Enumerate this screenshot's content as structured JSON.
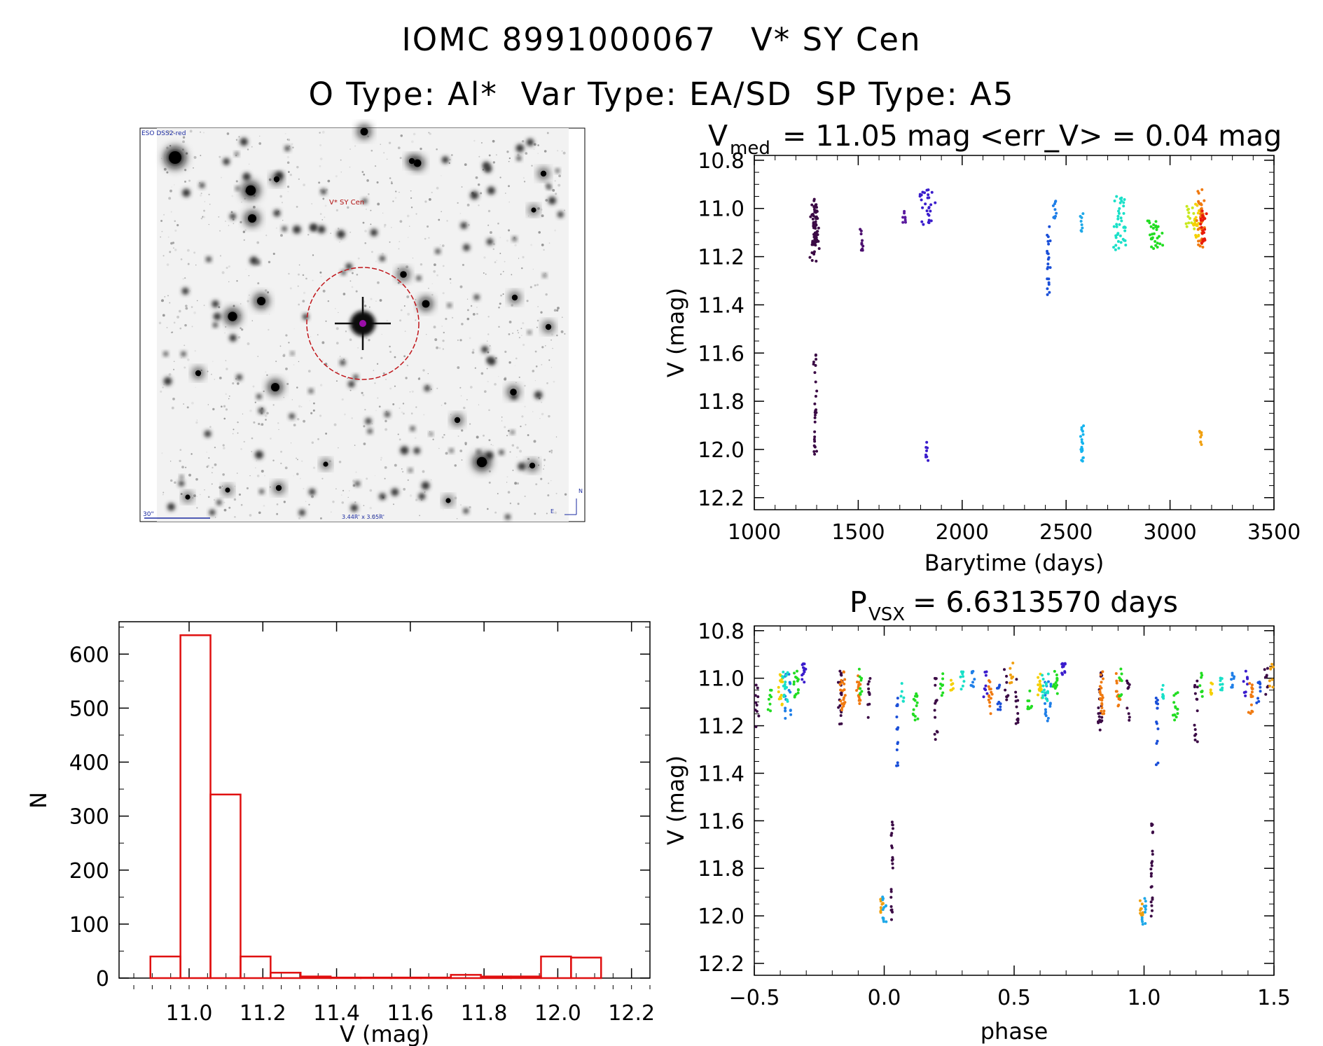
{
  "titles": {
    "line1": "IOMC 8991000067   V* SY Cen",
    "line2": "O Type: Al*  Var Type: EA/SD  SP Type: A5"
  },
  "finder": {
    "survey_label": "ESO DSS2-red",
    "target_label": "V* SY Cen",
    "scale_label": "30\"",
    "fov_label": "3.44R' x 3.05R'",
    "north_label": "N",
    "east_label": "E"
  },
  "chart_data": [
    {
      "type": "scatter",
      "id": "light-curve",
      "title": {
        "base": "V",
        "sub": "med",
        "rest": " = 11.05 mag <err_V> = 0.04 mag"
      },
      "xlabel": "Barytime (days)",
      "ylabel": "V (mag)",
      "xlim": [
        1000,
        3500
      ],
      "ylim": [
        12.25,
        10.78
      ],
      "yinverted": true,
      "xticks": [
        1000,
        1500,
        2000,
        2500,
        3000,
        3500
      ],
      "xticklabels": [
        "1000",
        "1500",
        "2000",
        "2500",
        "3000",
        "3500"
      ],
      "yticks": [
        10.8,
        11.0,
        11.2,
        11.4,
        11.6,
        11.8,
        12.0,
        12.2
      ],
      "yticklabels": [
        "10.8",
        "11.0",
        "11.2",
        "11.4",
        "11.6",
        "11.8",
        "12.0",
        "12.2"
      ],
      "clusters": [
        {
          "t": 1290,
          "ymin": 10.96,
          "ymax": 11.22,
          "n": 70,
          "color": "#3b0a45",
          "spread": 8
        },
        {
          "t": 1292,
          "ymin": 11.6,
          "ymax": 11.9,
          "n": 18,
          "color": "#3b0a45",
          "spread": 3
        },
        {
          "t": 1292,
          "ymin": 11.92,
          "ymax": 12.03,
          "n": 10,
          "color": "#3b0a45",
          "spread": 3
        },
        {
          "t": 1515,
          "ymin": 11.08,
          "ymax": 11.21,
          "n": 10,
          "color": "#4b0e6e",
          "spread": 3
        },
        {
          "t": 1720,
          "ymin": 11.01,
          "ymax": 11.07,
          "n": 8,
          "color": "#5a1a9e",
          "spread": 3
        },
        {
          "t": 1835,
          "ymin": 10.92,
          "ymax": 11.08,
          "n": 28,
          "color": "#3a1ccc",
          "spread": 14
        },
        {
          "t": 1830,
          "ymin": 11.94,
          "ymax": 12.05,
          "n": 8,
          "color": "#3a1ccc",
          "spread": 2
        },
        {
          "t": 2415,
          "ymin": 11.07,
          "ymax": 11.37,
          "n": 22,
          "color": "#1a4fd8",
          "spread": 3
        },
        {
          "t": 2445,
          "ymin": 10.96,
          "ymax": 11.05,
          "n": 10,
          "color": "#1f7fe8",
          "spread": 3
        },
        {
          "t": 2575,
          "ymin": 11.02,
          "ymax": 11.1,
          "n": 8,
          "color": "#1fa8e8",
          "spread": 3
        },
        {
          "t": 2575,
          "ymin": 11.9,
          "ymax": 12.05,
          "n": 20,
          "color": "#15b4ee",
          "spread": 3
        },
        {
          "t": 2760,
          "ymin": 10.95,
          "ymax": 11.19,
          "n": 40,
          "color": "#19e0c8",
          "spread": 10
        },
        {
          "t": 2930,
          "ymin": 11.05,
          "ymax": 11.18,
          "n": 30,
          "color": "#22dd22",
          "spread": 12
        },
        {
          "t": 3100,
          "ymin": 10.97,
          "ymax": 11.09,
          "n": 15,
          "color": "#c8e81e",
          "spread": 8
        },
        {
          "t": 3125,
          "ymin": 10.98,
          "ymax": 11.12,
          "n": 18,
          "color": "#f5d000",
          "spread": 6
        },
        {
          "t": 3150,
          "ymin": 10.92,
          "ymax": 11.17,
          "n": 40,
          "color": "#f07a10",
          "spread": 7
        },
        {
          "t": 3160,
          "ymin": 10.97,
          "ymax": 11.15,
          "n": 25,
          "color": "#e81a0a",
          "spread": 5
        },
        {
          "t": 3148,
          "ymin": 11.92,
          "ymax": 12.0,
          "n": 8,
          "color": "#f0a010",
          "spread": 2
        }
      ]
    },
    {
      "type": "bar",
      "id": "histogram",
      "xlabel": "V (mag)",
      "ylabel": "N",
      "xlim": [
        10.81,
        12.25
      ],
      "ylim": [
        0,
        660
      ],
      "xticks": [
        11.0,
        11.2,
        11.4,
        11.6,
        11.8,
        12.0,
        12.2
      ],
      "xticklabels": [
        "11.0",
        "11.2",
        "11.4",
        "11.6",
        "11.8",
        "12.0",
        "12.2"
      ],
      "yticks": [
        0,
        100,
        200,
        300,
        400,
        500,
        600
      ],
      "yticklabels": [
        "0",
        "100",
        "200",
        "300",
        "400",
        "500",
        "600"
      ],
      "bin_width": 0.0815,
      "bin_start": 10.895,
      "counts": [
        40,
        635,
        340,
        40,
        10,
        3,
        1,
        1,
        1,
        1,
        6,
        3,
        3,
        40,
        38
      ],
      "color": "#e01010"
    },
    {
      "type": "scatter",
      "id": "phased-curve",
      "title": {
        "base": "P",
        "sub": "VSX",
        "rest": " = 6.6313570 days"
      },
      "xlabel": "phase",
      "ylabel": "V (mag)",
      "xlim": [
        -0.5,
        1.5
      ],
      "ylim": [
        12.25,
        10.78
      ],
      "yinverted": true,
      "xticks": [
        -0.5,
        0.0,
        0.5,
        1.0,
        1.5
      ],
      "xticklabels": [
        "−0.5",
        "0.0",
        "0.5",
        "1.0",
        "1.5"
      ],
      "yticks": [
        10.8,
        11.0,
        11.2,
        11.4,
        11.6,
        11.8,
        12.0,
        12.2
      ],
      "yticklabels": [
        "10.8",
        "11.0",
        "11.2",
        "11.4",
        "11.6",
        "11.8",
        "12.0",
        "12.2"
      ],
      "period_days": 6.631357,
      "clusters": [
        {
          "p": -0.49,
          "ymin": 11.02,
          "ymax": 11.22,
          "n": 10,
          "color": "#3b0a45",
          "spread": 0.008
        },
        {
          "p": -0.44,
          "ymin": 11.05,
          "ymax": 11.14,
          "n": 8,
          "color": "#22dd22",
          "spread": 0.008
        },
        {
          "p": -0.4,
          "ymin": 10.98,
          "ymax": 11.12,
          "n": 14,
          "color": "#f5d000",
          "spread": 0.01
        },
        {
          "p": -0.37,
          "ymin": 10.98,
          "ymax": 11.18,
          "n": 18,
          "color": "#1f7fe8",
          "spread": 0.012
        },
        {
          "p": -0.38,
          "ymin": 10.97,
          "ymax": 11.1,
          "n": 15,
          "color": "#19e0c8",
          "spread": 0.012
        },
        {
          "p": -0.34,
          "ymin": 10.96,
          "ymax": 11.08,
          "n": 14,
          "color": "#22dd22",
          "spread": 0.01
        },
        {
          "p": -0.31,
          "ymin": 10.93,
          "ymax": 11.02,
          "n": 12,
          "color": "#3a1ccc",
          "spread": 0.008
        },
        {
          "p": -0.17,
          "ymin": 10.97,
          "ymax": 11.22,
          "n": 20,
          "color": "#3b0a45",
          "spread": 0.008
        },
        {
          "p": -0.16,
          "ymin": 10.97,
          "ymax": 11.15,
          "n": 22,
          "color": "#f07a10",
          "spread": 0.01
        },
        {
          "p": -0.1,
          "ymin": 10.98,
          "ymax": 11.12,
          "n": 15,
          "color": "#f07a10",
          "spread": 0.008
        },
        {
          "p": -0.09,
          "ymin": 10.96,
          "ymax": 11.08,
          "n": 8,
          "color": "#22dd22",
          "spread": 0.006
        },
        {
          "p": -0.06,
          "ymin": 11.0,
          "ymax": 11.18,
          "n": 10,
          "color": "#3b0a45",
          "spread": 0.006
        },
        {
          "p": -0.01,
          "ymin": 11.92,
          "ymax": 12.0,
          "n": 10,
          "color": "#f0a010",
          "spread": 0.006
        },
        {
          "p": 0.0,
          "ymin": 11.92,
          "ymax": 12.04,
          "n": 12,
          "color": "#1fa8e8",
          "spread": 0.008
        },
        {
          "p": 0.03,
          "ymin": 11.6,
          "ymax": 12.03,
          "n": 22,
          "color": "#3b0a45",
          "spread": 0.004
        },
        {
          "p": 0.05,
          "ymin": 11.08,
          "ymax": 11.37,
          "n": 14,
          "color": "#1a4fd8",
          "spread": 0.004
        },
        {
          "p": 0.07,
          "ymin": 11.02,
          "ymax": 11.1,
          "n": 6,
          "color": "#19e0c8",
          "spread": 0.006
        },
        {
          "p": 0.12,
          "ymin": 11.06,
          "ymax": 11.18,
          "n": 14,
          "color": "#22dd22",
          "spread": 0.01
        },
        {
          "p": 0.2,
          "ymin": 11.0,
          "ymax": 11.27,
          "n": 14,
          "color": "#3b0a45",
          "spread": 0.006
        },
        {
          "p": 0.22,
          "ymin": 10.97,
          "ymax": 11.08,
          "n": 8,
          "color": "#22dd22",
          "spread": 0.006
        },
        {
          "p": 0.26,
          "ymin": 11.0,
          "ymax": 11.07,
          "n": 6,
          "color": "#f5d000",
          "spread": 0.006
        },
        {
          "p": 0.3,
          "ymin": 10.97,
          "ymax": 11.05,
          "n": 8,
          "color": "#19e0c8",
          "spread": 0.008
        },
        {
          "p": 0.34,
          "ymin": 10.97,
          "ymax": 11.04,
          "n": 8,
          "color": "#1f7fe8",
          "spread": 0.008
        },
        {
          "p": 0.39,
          "ymin": 10.97,
          "ymax": 11.08,
          "n": 8,
          "color": "#3a1ccc",
          "spread": 0.008
        },
        {
          "p": 0.41,
          "ymin": 10.98,
          "ymax": 11.17,
          "n": 14,
          "color": "#f07a10",
          "spread": 0.008
        },
        {
          "p": 0.44,
          "ymin": 11.0,
          "ymax": 11.14,
          "n": 10,
          "color": "#1a4fd8",
          "spread": 0.008
        },
        {
          "p": 0.47,
          "ymin": 10.95,
          "ymax": 11.1,
          "n": 8,
          "color": "#3b0a45",
          "spread": 0.008
        },
        {
          "p": 0.49,
          "ymin": 10.93,
          "ymax": 11.05,
          "n": 8,
          "color": "#f0a010",
          "spread": 0.008
        },
        {
          "p": 0.51,
          "ymin": 10.98,
          "ymax": 11.22,
          "n": 12,
          "color": "#3b0a45",
          "spread": 0.006
        },
        {
          "p": 0.56,
          "ymin": 11.05,
          "ymax": 11.14,
          "n": 8,
          "color": "#22dd22",
          "spread": 0.008
        },
        {
          "p": 0.6,
          "ymin": 10.98,
          "ymax": 11.12,
          "n": 14,
          "color": "#f5d000",
          "spread": 0.01
        },
        {
          "p": 0.63,
          "ymin": 10.98,
          "ymax": 11.18,
          "n": 18,
          "color": "#1f7fe8",
          "spread": 0.012
        },
        {
          "p": 0.62,
          "ymin": 10.97,
          "ymax": 11.1,
          "n": 15,
          "color": "#19e0c8",
          "spread": 0.012
        },
        {
          "p": 0.66,
          "ymin": 10.96,
          "ymax": 11.08,
          "n": 14,
          "color": "#22dd22",
          "spread": 0.01
        },
        {
          "p": 0.69,
          "ymin": 10.93,
          "ymax": 11.02,
          "n": 12,
          "color": "#3a1ccc",
          "spread": 0.008
        },
        {
          "p": 0.83,
          "ymin": 10.97,
          "ymax": 11.22,
          "n": 20,
          "color": "#3b0a45",
          "spread": 0.008
        },
        {
          "p": 0.84,
          "ymin": 10.97,
          "ymax": 11.15,
          "n": 22,
          "color": "#f07a10",
          "spread": 0.01
        },
        {
          "p": 0.9,
          "ymin": 10.98,
          "ymax": 11.12,
          "n": 15,
          "color": "#f07a10",
          "spread": 0.008
        },
        {
          "p": 0.91,
          "ymin": 10.96,
          "ymax": 11.08,
          "n": 8,
          "color": "#22dd22",
          "spread": 0.006
        },
        {
          "p": 0.94,
          "ymin": 11.0,
          "ymax": 11.18,
          "n": 10,
          "color": "#3b0a45",
          "spread": 0.006
        },
        {
          "p": 0.99,
          "ymin": 11.92,
          "ymax": 12.0,
          "n": 10,
          "color": "#f0a010",
          "spread": 0.006
        },
        {
          "p": 1.0,
          "ymin": 11.92,
          "ymax": 12.04,
          "n": 12,
          "color": "#1fa8e8",
          "spread": 0.008
        },
        {
          "p": 1.03,
          "ymin": 11.6,
          "ymax": 12.03,
          "n": 22,
          "color": "#3b0a45",
          "spread": 0.004
        },
        {
          "p": 1.05,
          "ymin": 11.08,
          "ymax": 11.37,
          "n": 14,
          "color": "#1a4fd8",
          "spread": 0.004
        },
        {
          "p": 1.07,
          "ymin": 11.02,
          "ymax": 11.1,
          "n": 6,
          "color": "#19e0c8",
          "spread": 0.006
        },
        {
          "p": 1.12,
          "ymin": 11.06,
          "ymax": 11.18,
          "n": 14,
          "color": "#22dd22",
          "spread": 0.01
        },
        {
          "p": 1.2,
          "ymin": 11.0,
          "ymax": 11.27,
          "n": 14,
          "color": "#3b0a45",
          "spread": 0.006
        },
        {
          "p": 1.22,
          "ymin": 10.97,
          "ymax": 11.08,
          "n": 8,
          "color": "#22dd22",
          "spread": 0.006
        },
        {
          "p": 1.26,
          "ymin": 11.0,
          "ymax": 11.07,
          "n": 6,
          "color": "#f5d000",
          "spread": 0.006
        },
        {
          "p": 1.3,
          "ymin": 10.97,
          "ymax": 11.05,
          "n": 8,
          "color": "#19e0c8",
          "spread": 0.008
        },
        {
          "p": 1.34,
          "ymin": 10.97,
          "ymax": 11.04,
          "n": 8,
          "color": "#1f7fe8",
          "spread": 0.008
        },
        {
          "p": 1.39,
          "ymin": 10.97,
          "ymax": 11.08,
          "n": 8,
          "color": "#3a1ccc",
          "spread": 0.008
        },
        {
          "p": 1.41,
          "ymin": 10.98,
          "ymax": 11.17,
          "n": 14,
          "color": "#f07a10",
          "spread": 0.008
        },
        {
          "p": 1.44,
          "ymin": 11.0,
          "ymax": 11.14,
          "n": 10,
          "color": "#1a4fd8",
          "spread": 0.008
        },
        {
          "p": 1.47,
          "ymin": 10.95,
          "ymax": 11.1,
          "n": 8,
          "color": "#3b0a45",
          "spread": 0.008
        },
        {
          "p": 1.49,
          "ymin": 10.93,
          "ymax": 11.05,
          "n": 8,
          "color": "#f0a010",
          "spread": 0.008
        }
      ]
    }
  ]
}
